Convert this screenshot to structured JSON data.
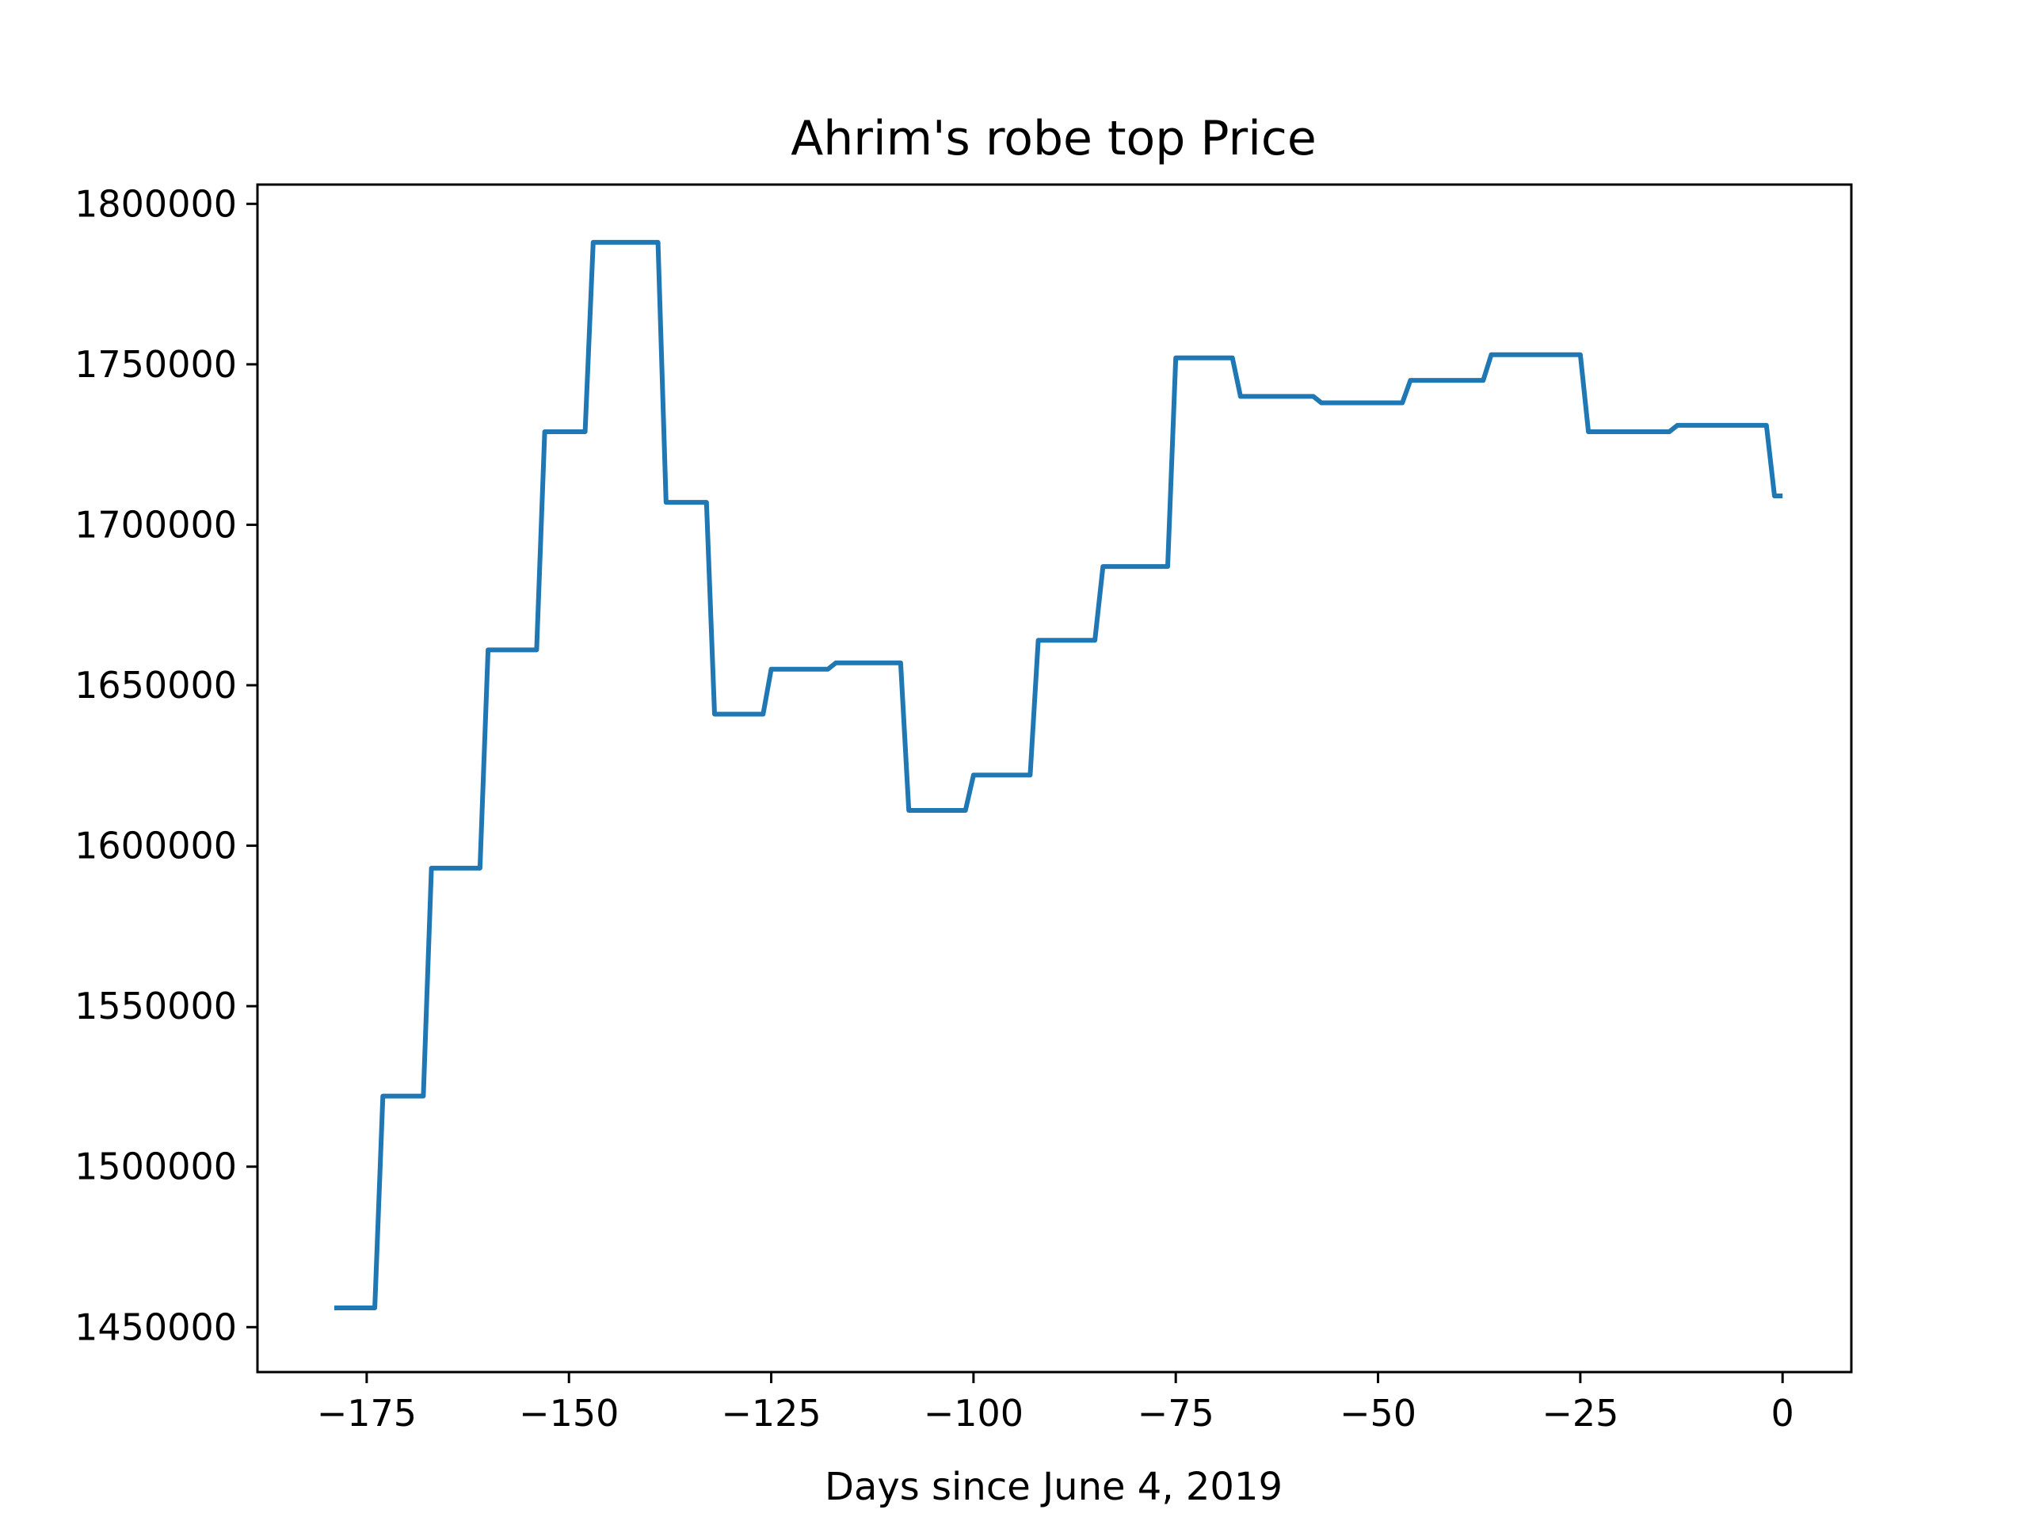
{
  "chart_data": {
    "type": "line",
    "title": "Ahrim's robe top Price",
    "xlabel": "Days since June 4, 2019",
    "ylabel": "",
    "xlim": [
      -188.5,
      8.5
    ],
    "ylim": [
      1436000,
      1806000
    ],
    "grid": false,
    "legend": "none",
    "line_color": "#1f77b4",
    "x_ticks": [
      -175,
      -150,
      -125,
      -100,
      -75,
      -50,
      -25,
      0
    ],
    "x_tick_labels": [
      "−175",
      "−150",
      "−125",
      "−100",
      "−75",
      "−50",
      "−25",
      "0"
    ],
    "y_ticks": [
      1450000,
      1500000,
      1550000,
      1600000,
      1650000,
      1700000,
      1750000,
      1800000
    ],
    "y_tick_labels": [
      "1450000",
      "1500000",
      "1550000",
      "1600000",
      "1650000",
      "1700000",
      "1750000",
      "1800000"
    ],
    "series": [
      {
        "points": [
          [
            -179,
            1456000
          ],
          [
            -174,
            1456000
          ],
          [
            -173,
            1522000
          ],
          [
            -168,
            1522000
          ],
          [
            -167,
            1593000
          ],
          [
            -161,
            1593000
          ],
          [
            -160,
            1661000
          ],
          [
            -154,
            1661000
          ],
          [
            -153,
            1729000
          ],
          [
            -148,
            1729000
          ],
          [
            -147,
            1788000
          ],
          [
            -139,
            1788000
          ],
          [
            -138,
            1707000
          ],
          [
            -133,
            1707000
          ],
          [
            -132,
            1641000
          ],
          [
            -126,
            1641000
          ],
          [
            -125,
            1655000
          ],
          [
            -118,
            1655000
          ],
          [
            -117,
            1657000
          ],
          [
            -109,
            1657000
          ],
          [
            -108,
            1611000
          ],
          [
            -101,
            1611000
          ],
          [
            -100,
            1622000
          ],
          [
            -93,
            1622000
          ],
          [
            -92,
            1664000
          ],
          [
            -85,
            1664000
          ],
          [
            -84,
            1687000
          ],
          [
            -76,
            1687000
          ],
          [
            -75,
            1752000
          ],
          [
            -68,
            1752000
          ],
          [
            -67,
            1740000
          ],
          [
            -58,
            1740000
          ],
          [
            -57,
            1738000
          ],
          [
            -47,
            1738000
          ],
          [
            -46,
            1745000
          ],
          [
            -37,
            1745000
          ],
          [
            -36,
            1753000
          ],
          [
            -25,
            1753000
          ],
          [
            -24,
            1729000
          ],
          [
            -14,
            1729000
          ],
          [
            -13,
            1731000
          ],
          [
            -2,
            1731000
          ],
          [
            -1,
            1709000
          ],
          [
            0,
            1709000
          ]
        ]
      }
    ]
  }
}
